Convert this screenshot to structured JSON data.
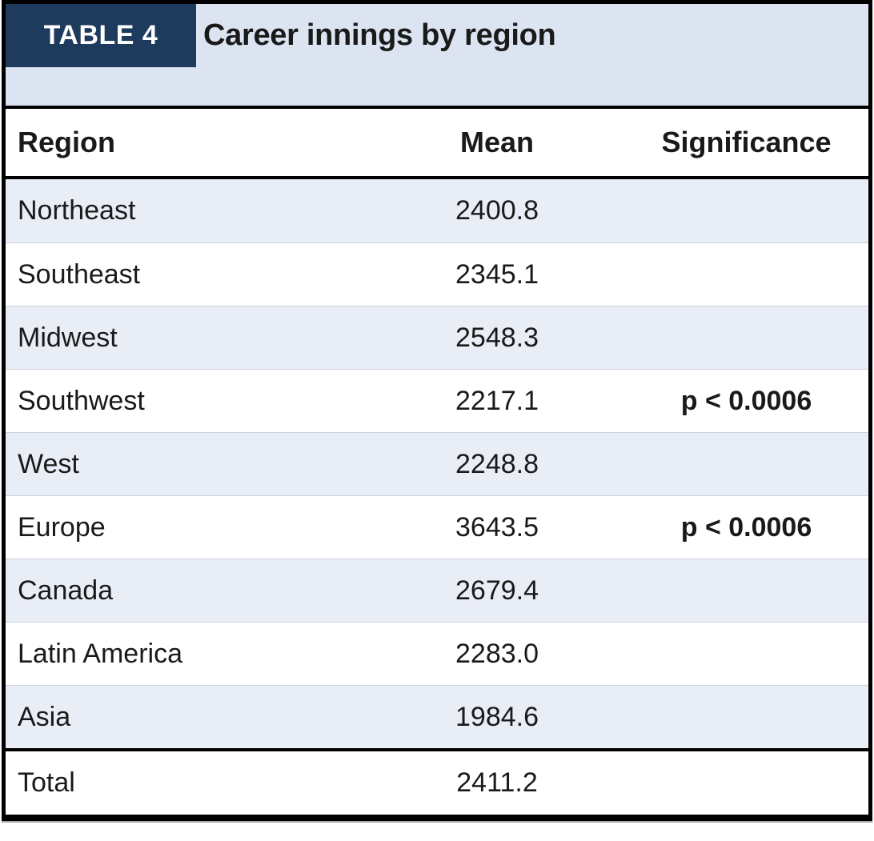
{
  "table": {
    "tag": "TABLE 4",
    "title": "Career innings by region",
    "columns": [
      "Region",
      "Mean",
      "Significance"
    ],
    "rows": [
      {
        "region": "Northeast",
        "mean": "2400.8",
        "significance": ""
      },
      {
        "region": "Southeast",
        "mean": "2345.1",
        "significance": ""
      },
      {
        "region": "Midwest",
        "mean": "2548.3",
        "significance": ""
      },
      {
        "region": "Southwest",
        "mean": "2217.1",
        "significance": "p < 0.0006"
      },
      {
        "region": "West",
        "mean": "2248.8",
        "significance": ""
      },
      {
        "region": "Europe",
        "mean": "3643.5",
        "significance": "p < 0.0006"
      },
      {
        "region": "Canada",
        "mean": "2679.4",
        "significance": ""
      },
      {
        "region": "Latin America",
        "mean": "2283.0",
        "significance": ""
      },
      {
        "region": "Asia",
        "mean": "1984.6",
        "significance": ""
      }
    ],
    "total": {
      "region": "Total",
      "mean": "2411.2",
      "significance": ""
    }
  },
  "colors": {
    "navy": "#1e3a5c",
    "banner": "#dbe4f0",
    "stripe": "#e9edf6",
    "ink": "#1a1a1a",
    "rule": "#000000"
  },
  "chart_data": {
    "type": "table",
    "title": "Career innings by region",
    "columns": [
      "Region",
      "Mean",
      "Significance"
    ],
    "categories": [
      "Northeast",
      "Southeast",
      "Midwest",
      "Southwest",
      "West",
      "Europe",
      "Canada",
      "Latin America",
      "Asia",
      "Total"
    ],
    "values": [
      2400.8,
      2345.1,
      2548.3,
      2217.1,
      2248.8,
      3643.5,
      2679.4,
      2283.0,
      1984.6,
      2411.2
    ],
    "significance": [
      "",
      "",
      "",
      "p < 0.0006",
      "",
      "p < 0.0006",
      "",
      "",
      "",
      ""
    ]
  }
}
